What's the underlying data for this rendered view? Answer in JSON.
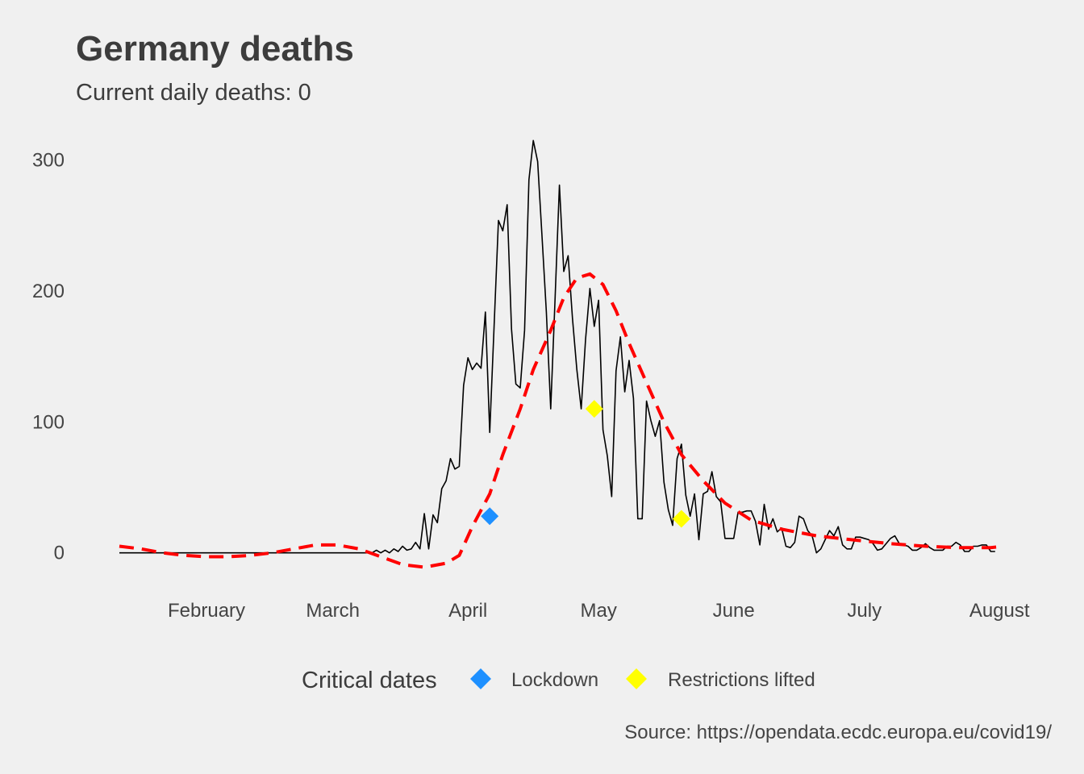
{
  "chart_data": {
    "type": "line",
    "title": "Germany deaths",
    "subtitle": "Current daily deaths:  0",
    "caption": "Source: https://opendata.ecdc.europa.eu/covid19/",
    "x_range": [
      "2020-01-12",
      "2020-08-03"
    ],
    "y_range": [
      -15,
      330
    ],
    "y_ticks": [
      0,
      100,
      200,
      300
    ],
    "x_ticks": [
      {
        "date": "2020-02-01",
        "label": "February"
      },
      {
        "date": "2020-03-01",
        "label": "March"
      },
      {
        "date": "2020-04-01",
        "label": "April"
      },
      {
        "date": "2020-05-01",
        "label": "May"
      },
      {
        "date": "2020-06-01",
        "label": "June"
      },
      {
        "date": "2020-07-01",
        "label": "July"
      },
      {
        "date": "2020-08-01",
        "label": "August"
      }
    ],
    "grid": false,
    "legend": {
      "position": "bottom",
      "title": "Critical dates",
      "items": [
        {
          "label": "Lockdown",
          "color": "#1e90ff"
        },
        {
          "label": "Restrictions lifted",
          "color": "#ffff00"
        }
      ]
    },
    "series": [
      {
        "style": "solid",
        "color": "#000000",
        "points": [
          [
            "2020-01-12",
            0
          ],
          [
            "2020-03-10",
            0
          ],
          [
            "2020-03-11",
            2
          ],
          [
            "2020-03-12",
            0
          ],
          [
            "2020-03-13",
            2
          ],
          [
            "2020-03-14",
            0
          ],
          [
            "2020-03-15",
            3
          ],
          [
            "2020-03-16",
            1
          ],
          [
            "2020-03-17",
            5
          ],
          [
            "2020-03-18",
            2
          ],
          [
            "2020-03-19",
            3
          ],
          [
            "2020-03-20",
            8
          ],
          [
            "2020-03-21",
            3
          ],
          [
            "2020-03-22",
            30
          ],
          [
            "2020-03-23",
            3
          ],
          [
            "2020-03-24",
            29
          ],
          [
            "2020-03-25",
            23
          ],
          [
            "2020-03-26",
            49
          ],
          [
            "2020-03-27",
            55
          ],
          [
            "2020-03-28",
            72
          ],
          [
            "2020-03-29",
            64
          ],
          [
            "2020-03-30",
            66
          ],
          [
            "2020-03-31",
            128
          ],
          [
            "2020-04-01",
            149
          ],
          [
            "2020-04-02",
            140
          ],
          [
            "2020-04-03",
            145
          ],
          [
            "2020-04-04",
            141
          ],
          [
            "2020-04-05",
            184
          ],
          [
            "2020-04-06",
            92
          ],
          [
            "2020-04-07",
            173
          ],
          [
            "2020-04-08",
            254
          ],
          [
            "2020-04-09",
            246
          ],
          [
            "2020-04-10",
            266
          ],
          [
            "2020-04-11",
            171
          ],
          [
            "2020-04-12",
            129
          ],
          [
            "2020-04-13",
            126
          ],
          [
            "2020-04-14",
            170
          ],
          [
            "2020-04-15",
            285
          ],
          [
            "2020-04-16",
            315
          ],
          [
            "2020-04-17",
            299
          ],
          [
            "2020-04-18",
            242
          ],
          [
            "2020-04-19",
            184
          ],
          [
            "2020-04-20",
            110
          ],
          [
            "2020-04-21",
            194
          ],
          [
            "2020-04-22",
            281
          ],
          [
            "2020-04-23",
            215
          ],
          [
            "2020-04-24",
            227
          ],
          [
            "2020-04-25",
            179
          ],
          [
            "2020-04-26",
            140
          ],
          [
            "2020-04-27",
            110
          ],
          [
            "2020-04-28",
            163
          ],
          [
            "2020-04-29",
            202
          ],
          [
            "2020-04-30",
            173
          ],
          [
            "2020-05-01",
            193
          ],
          [
            "2020-05-02",
            94
          ],
          [
            "2020-05-03",
            74
          ],
          [
            "2020-05-04",
            43
          ],
          [
            "2020-05-05",
            139
          ],
          [
            "2020-05-06",
            165
          ],
          [
            "2020-05-07",
            123
          ],
          [
            "2020-05-08",
            147
          ],
          [
            "2020-05-09",
            118
          ],
          [
            "2020-05-10",
            26
          ],
          [
            "2020-05-11",
            26
          ],
          [
            "2020-05-12",
            116
          ],
          [
            "2020-05-13",
            101
          ],
          [
            "2020-05-14",
            89
          ],
          [
            "2020-05-15",
            101
          ],
          [
            "2020-05-16",
            54
          ],
          [
            "2020-05-17",
            33
          ],
          [
            "2020-05-18",
            21
          ],
          [
            "2020-05-19",
            72
          ],
          [
            "2020-05-20",
            83
          ],
          [
            "2020-05-21",
            44
          ],
          [
            "2020-05-22",
            28
          ],
          [
            "2020-05-23",
            45
          ],
          [
            "2020-05-24",
            10
          ],
          [
            "2020-05-25",
            45
          ],
          [
            "2020-05-26",
            47
          ],
          [
            "2020-05-27",
            62
          ],
          [
            "2020-05-28",
            43
          ],
          [
            "2020-05-29",
            39
          ],
          [
            "2020-05-30",
            11
          ],
          [
            "2020-05-31",
            11
          ],
          [
            "2020-06-01",
            11
          ],
          [
            "2020-06-02",
            31
          ],
          [
            "2020-06-03",
            31
          ],
          [
            "2020-06-04",
            32
          ],
          [
            "2020-06-05",
            32
          ],
          [
            "2020-06-06",
            24
          ],
          [
            "2020-06-07",
            6
          ],
          [
            "2020-06-08",
            37
          ],
          [
            "2020-06-09",
            18
          ],
          [
            "2020-06-10",
            26
          ],
          [
            "2020-06-11",
            16
          ],
          [
            "2020-06-12",
            19
          ],
          [
            "2020-06-13",
            5
          ],
          [
            "2020-06-14",
            4
          ],
          [
            "2020-06-15",
            8
          ],
          [
            "2020-06-16",
            28
          ],
          [
            "2020-06-17",
            26
          ],
          [
            "2020-06-18",
            17
          ],
          [
            "2020-06-19",
            13
          ],
          [
            "2020-06-20",
            0
          ],
          [
            "2020-06-21",
            3
          ],
          [
            "2020-06-22",
            10
          ],
          [
            "2020-06-23",
            17
          ],
          [
            "2020-06-24",
            13
          ],
          [
            "2020-06-25",
            20
          ],
          [
            "2020-06-26",
            6
          ],
          [
            "2020-06-27",
            3
          ],
          [
            "2020-06-28",
            3
          ],
          [
            "2020-06-29",
            12
          ],
          [
            "2020-06-30",
            12
          ],
          [
            "2020-07-01",
            11
          ],
          [
            "2020-07-02",
            10
          ],
          [
            "2020-07-03",
            7
          ],
          [
            "2020-07-04",
            2
          ],
          [
            "2020-07-05",
            3
          ],
          [
            "2020-07-06",
            7
          ],
          [
            "2020-07-07",
            11
          ],
          [
            "2020-07-08",
            13
          ],
          [
            "2020-07-09",
            7
          ],
          [
            "2020-07-10",
            6
          ],
          [
            "2020-07-11",
            5
          ],
          [
            "2020-07-12",
            2
          ],
          [
            "2020-07-13",
            2
          ],
          [
            "2020-07-14",
            4
          ],
          [
            "2020-07-15",
            7
          ],
          [
            "2020-07-16",
            4
          ],
          [
            "2020-07-17",
            2
          ],
          [
            "2020-07-18",
            2
          ],
          [
            "2020-07-19",
            2
          ],
          [
            "2020-07-20",
            5
          ],
          [
            "2020-07-21",
            5
          ],
          [
            "2020-07-22",
            8
          ],
          [
            "2020-07-23",
            6
          ],
          [
            "2020-07-24",
            1
          ],
          [
            "2020-07-25",
            1
          ],
          [
            "2020-07-26",
            5
          ],
          [
            "2020-07-27",
            5
          ],
          [
            "2020-07-28",
            6
          ],
          [
            "2020-07-29",
            6
          ],
          [
            "2020-07-30",
            1
          ],
          [
            "2020-07-31",
            1
          ]
        ]
      },
      {
        "style": "dashed",
        "color": "#ff0000",
        "points": [
          [
            "2020-01-12",
            5
          ],
          [
            "2020-01-17",
            3
          ],
          [
            "2020-01-22",
            0
          ],
          [
            "2020-01-27",
            -2
          ],
          [
            "2020-02-01",
            -3
          ],
          [
            "2020-02-06",
            -3
          ],
          [
            "2020-02-11",
            -2
          ],
          [
            "2020-02-16",
            0
          ],
          [
            "2020-02-21",
            3
          ],
          [
            "2020-02-26",
            6
          ],
          [
            "2020-03-02",
            6
          ],
          [
            "2020-03-07",
            3
          ],
          [
            "2020-03-12",
            -3
          ],
          [
            "2020-03-17",
            -9
          ],
          [
            "2020-03-22",
            -11
          ],
          [
            "2020-03-27",
            -8
          ],
          [
            "2020-03-30",
            -2
          ],
          [
            "2020-04-02",
            20
          ],
          [
            "2020-04-06",
            45
          ],
          [
            "2020-04-09",
            75
          ],
          [
            "2020-04-13",
            110
          ],
          [
            "2020-04-16",
            140
          ],
          [
            "2020-04-20",
            170
          ],
          [
            "2020-04-23",
            195
          ],
          [
            "2020-04-26",
            210
          ],
          [
            "2020-04-29",
            213
          ],
          [
            "2020-05-02",
            205
          ],
          [
            "2020-05-05",
            185
          ],
          [
            "2020-05-08",
            160
          ],
          [
            "2020-05-12",
            130
          ],
          [
            "2020-05-16",
            100
          ],
          [
            "2020-05-20",
            75
          ],
          [
            "2020-05-25",
            55
          ],
          [
            "2020-05-30",
            38
          ],
          [
            "2020-06-05",
            25
          ],
          [
            "2020-06-12",
            18
          ],
          [
            "2020-06-20",
            13
          ],
          [
            "2020-06-28",
            10
          ],
          [
            "2020-07-07",
            7
          ],
          [
            "2020-07-15",
            5
          ],
          [
            "2020-07-22",
            4
          ],
          [
            "2020-07-30",
            4
          ],
          [
            "2020-08-02",
            5
          ]
        ]
      }
    ],
    "markers": [
      {
        "date": "2020-04-06",
        "value": 28,
        "type": "Lockdown",
        "color": "#1e90ff"
      },
      {
        "date": "2020-04-30",
        "value": 110,
        "type": "Restrictions lifted",
        "color": "#ffff00"
      },
      {
        "date": "2020-05-20",
        "value": 26,
        "type": "Restrictions lifted",
        "color": "#ffff00"
      }
    ]
  }
}
